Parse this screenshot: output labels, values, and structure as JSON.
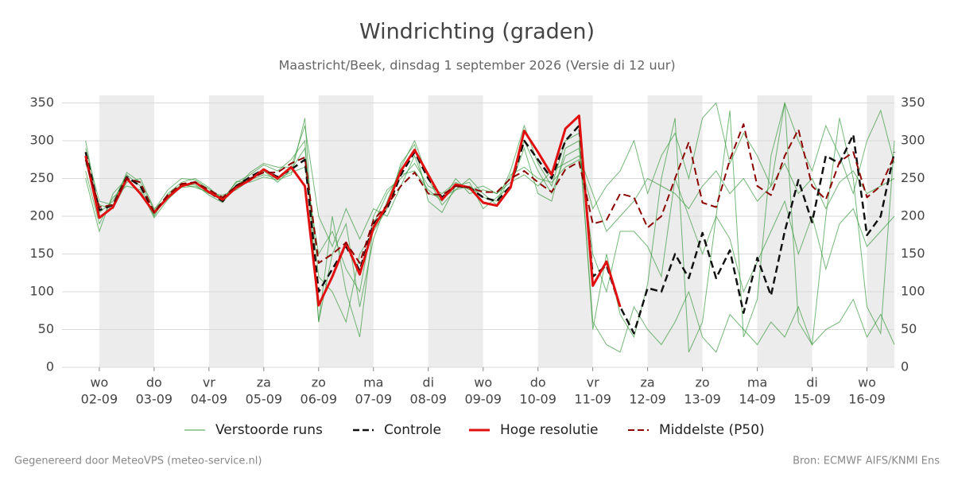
{
  "chart_data": {
    "type": "line",
    "title": "Windrichting (graden)",
    "subtitle": "Maastricht/Beek, dinsdag  1 september 2026 (Versie di 12 uur)",
    "x": [
      -0.25,
      0,
      0.25,
      0.5,
      0.75,
      1,
      1.25,
      1.5,
      1.75,
      2,
      2.25,
      2.5,
      2.75,
      3,
      3.25,
      3.5,
      3.75,
      4,
      4.25,
      4.5,
      4.75,
      5,
      5.25,
      5.5,
      5.75,
      6,
      6.25,
      6.5,
      6.75,
      7,
      7.25,
      7.5,
      7.75,
      8,
      8.25,
      8.5,
      8.75,
      9,
      9.25,
      9.5,
      9.75,
      10,
      10.25,
      10.5,
      10.75,
      11,
      11.25,
      11.5,
      11.75,
      12,
      12.25,
      12.5,
      12.75,
      13,
      13.25,
      13.5,
      13.75,
      14,
      14.25,
      14.5
    ],
    "xlim": [
      -0.68,
      14.5
    ],
    "xticks": [
      {
        "value": 0,
        "label": "02-09"
      },
      {
        "value": 1,
        "label": "03-09"
      },
      {
        "value": 2,
        "label": "04-09"
      },
      {
        "value": 3,
        "label": "05-09"
      },
      {
        "value": 4,
        "label": "06-09"
      },
      {
        "value": 5,
        "label": "07-09"
      },
      {
        "value": 6,
        "label": "08-09"
      },
      {
        "value": 7,
        "label": "09-09"
      },
      {
        "value": 8,
        "label": "10-09"
      },
      {
        "value": 9,
        "label": "11-09"
      },
      {
        "value": 10,
        "label": "12-09"
      },
      {
        "value": 11,
        "label": "13-09"
      },
      {
        "value": 12,
        "label": "14-09"
      },
      {
        "value": 13,
        "label": "15-09"
      },
      {
        "value": 14,
        "label": "16-09"
      }
    ],
    "xtick_weekdays": [
      "wo",
      "do",
      "vr",
      "za",
      "zo",
      "ma",
      "di",
      "wo",
      "do",
      "vr",
      "za",
      "zo",
      "ma",
      "di",
      "wo"
    ],
    "ylim": [
      0,
      360
    ],
    "yticks": [
      0,
      50,
      100,
      150,
      200,
      250,
      300,
      350
    ],
    "y2lim": [
      0,
      360
    ],
    "y2ticks": [
      0,
      50,
      100,
      150,
      200,
      250,
      300,
      350
    ],
    "grid": true,
    "ensemble": {
      "name": "Verstoorde runs",
      "color": "#3a9a3f",
      "members": [
        [
          300,
          205,
          220,
          255,
          240,
          200,
          230,
          245,
          250,
          238,
          222,
          245,
          255,
          268,
          260,
          275,
          300,
          60,
          150,
          190,
          80,
          170,
          220,
          265,
          300,
          250,
          215,
          235,
          240,
          225,
          220,
          260,
          320,
          270,
          240,
          300,
          310,
          50,
          150,
          70,
          40,
          110,
          250,
          330,
          20,
          60,
          200,
          340,
          40,
          90,
          280,
          350,
          60,
          30,
          200,
          330,
          250,
          80,
          45,
          300
        ],
        [
          270,
          215,
          210,
          245,
          250,
          210,
          225,
          238,
          240,
          230,
          228,
          235,
          248,
          255,
          250,
          258,
          265,
          150,
          180,
          130,
          100,
          200,
          235,
          250,
          270,
          240,
          230,
          245,
          235,
          240,
          230,
          245,
          255,
          240,
          260,
          270,
          280,
          230,
          180,
          200,
          220,
          250,
          240,
          230,
          210,
          240,
          260,
          230,
          250,
          220,
          240,
          270,
          230,
          250,
          210,
          245,
          260,
          230,
          240,
          250
        ],
        [
          260,
          190,
          225,
          240,
          235,
          198,
          222,
          240,
          242,
          228,
          218,
          242,
          250,
          260,
          245,
          262,
          290,
          120,
          100,
          60,
          150,
          180,
          210,
          270,
          295,
          220,
          205,
          240,
          245,
          210,
          225,
          240,
          290,
          230,
          220,
          290,
          300,
          60,
          30,
          20,
          80,
          50,
          30,
          60,
          100,
          40,
          20,
          70,
          50,
          30,
          60,
          40,
          80,
          30,
          50,
          60,
          90,
          40,
          70,
          30
        ],
        [
          290,
          220,
          215,
          258,
          245,
          208,
          235,
          250,
          248,
          236,
          224,
          238,
          258,
          270,
          265,
          265,
          320,
          200,
          160,
          210,
          170,
          210,
          200,
          240,
          280,
          230,
          225,
          235,
          250,
          230,
          215,
          255,
          265,
          250,
          245,
          265,
          275,
          210,
          240,
          260,
          300,
          230,
          280,
          310,
          250,
          330,
          350,
          270,
          310,
          280,
          240,
          350,
          300,
          260,
          320,
          280,
          230,
          300,
          340,
          270
        ],
        [
          250,
          180,
          230,
          250,
          230,
          202,
          228,
          242,
          238,
          232,
          222,
          246,
          245,
          252,
          248,
          255,
          330,
          60,
          200,
          100,
          40,
          190,
          230,
          255,
          260,
          235,
          220,
          250,
          230,
          235,
          230,
          250,
          300,
          260,
          230,
          280,
          290,
          150,
          100,
          180,
          180,
          160,
          120,
          250,
          200,
          150,
          200,
          170,
          100,
          140,
          180,
          220,
          150,
          200,
          130,
          190,
          210,
          160,
          180,
          200
        ]
      ]
    },
    "series": [
      {
        "name": "Controle",
        "color": "#111111",
        "dash": true,
        "width": 2.5,
        "values": [
          285,
          208,
          215,
          252,
          240,
          205,
          228,
          242,
          245,
          232,
          220,
          240,
          252,
          262,
          252,
          262,
          275,
          100,
          130,
          160,
          128,
          190,
          210,
          255,
          285,
          250,
          225,
          240,
          238,
          225,
          220,
          240,
          300,
          275,
          250,
          300,
          320,
          120,
          135,
          80,
          45,
          105,
          100,
          150,
          118,
          178,
          118,
          155,
          72,
          145,
          95,
          180,
          248,
          192,
          280,
          270,
          308,
          175,
          200,
          285
        ]
      },
      {
        "name": "Hoge resolutie",
        "color": "#e01010",
        "dash": false,
        "width": 3,
        "values": [
          280,
          198,
          212,
          250,
          230,
          205,
          225,
          240,
          245,
          232,
          222,
          238,
          248,
          262,
          250,
          265,
          240,
          82,
          120,
          165,
          123,
          185,
          215,
          260,
          288,
          255,
          222,
          242,
          238,
          218,
          214,
          238,
          313,
          285,
          255,
          316,
          333,
          108,
          140,
          80,
          null,
          null,
          null,
          null,
          null,
          null,
          null,
          null,
          null,
          null,
          null,
          null,
          null,
          null,
          null,
          null,
          null,
          null,
          null,
          null
        ]
      },
      {
        "name": "Middelste (P50)",
        "color": "#8b0000",
        "dash": true,
        "width": 2,
        "values": [
          275,
          212,
          215,
          250,
          245,
          205,
          228,
          243,
          245,
          235,
          225,
          240,
          250,
          258,
          258,
          270,
          278,
          138,
          150,
          165,
          138,
          195,
          215,
          240,
          258,
          230,
          228,
          240,
          238,
          232,
          232,
          250,
          260,
          245,
          232,
          262,
          272,
          190,
          195,
          230,
          225,
          185,
          200,
          250,
          298,
          218,
          212,
          275,
          322,
          240,
          228,
          280,
          315,
          240,
          222,
          272,
          285,
          225,
          240,
          280
        ]
      }
    ]
  },
  "footer": {
    "left": "Gegenereerd door MeteoVPS (meteo-service.nl)",
    "right": "Bron: ECMWF AIFS/KNMI Ens"
  }
}
